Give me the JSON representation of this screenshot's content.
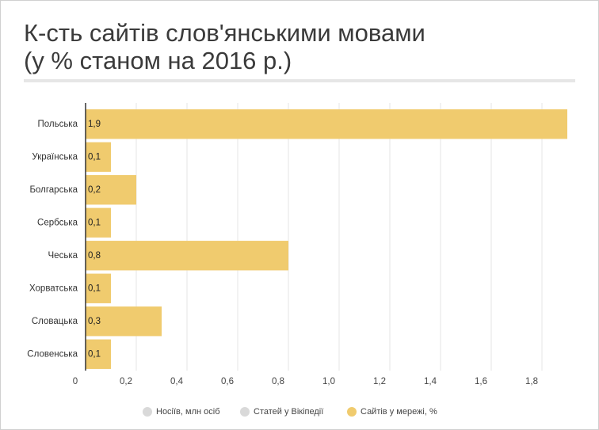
{
  "chart_data": {
    "type": "bar",
    "orientation": "horizontal",
    "title": [
      "К-сть сайтів слов'янськими мовами",
      "(у % станом на 2016 р.)"
    ],
    "categories": [
      "Польська",
      "Українська",
      "Болгарська",
      "Сербська",
      "Чеська",
      "Хорватська",
      "Словацька",
      "Словенська"
    ],
    "values": [
      1.9,
      0.1,
      0.2,
      0.1,
      0.8,
      0.1,
      0.3,
      0.1
    ],
    "value_labels": [
      "1,9",
      "0,1",
      "0,2",
      "0,1",
      "0,8",
      "0,1",
      "0,3",
      "0,1"
    ],
    "color": "#f0cb6e",
    "xlim": [
      0,
      1.9
    ],
    "xticks": [
      0,
      {
        "value": 0.2,
        "label": "0,2"
      },
      {
        "value": 0.4,
        "label": "0,4"
      },
      {
        "value": 0.6,
        "label": "0,6"
      },
      {
        "value": 0.8,
        "label": "0,8"
      },
      {
        "value": 1.0,
        "label": "1,0"
      },
      {
        "value": 1.2,
        "label": "1,2"
      },
      {
        "value": 1.4,
        "label": "1,4"
      },
      {
        "value": 1.6,
        "label": "1,6"
      },
      {
        "value": 1.8,
        "label": "1,8"
      }
    ],
    "grid": true,
    "legend": [
      {
        "name": "Носіїв, млн осіб",
        "color": "#d9d9d9"
      },
      {
        "name": "Статей у Вікіпедії",
        "color": "#d9d9d9"
      },
      {
        "name": "Сайтів у мережі, %",
        "color": "#f0cb6e"
      }
    ]
  }
}
